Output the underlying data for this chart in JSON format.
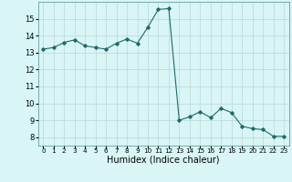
{
  "x": [
    0,
    1,
    2,
    3,
    4,
    5,
    6,
    7,
    8,
    9,
    10,
    11,
    12,
    13,
    14,
    15,
    16,
    17,
    18,
    19,
    20,
    21,
    22,
    23
  ],
  "y": [
    13.2,
    13.3,
    13.6,
    13.75,
    13.4,
    13.3,
    13.2,
    13.55,
    13.8,
    13.55,
    14.5,
    15.55,
    15.6,
    9.0,
    9.2,
    9.5,
    9.15,
    9.7,
    9.45,
    8.65,
    8.5,
    8.45,
    8.05,
    8.05
  ],
  "line_color": "#1a6b6b",
  "marker": "D",
  "marker_size": 1.8,
  "line_width": 0.8,
  "bg_color": "#d9f5f5",
  "grid_color": "#b8d8d8",
  "xlabel": "Humidex (Indice chaleur)",
  "xlim": [
    -0.5,
    23.5
  ],
  "ylim": [
    7.5,
    16.0
  ],
  "yticks": [
    8,
    9,
    10,
    11,
    12,
    13,
    14,
    15
  ],
  "xtick_positions": [
    0,
    1,
    2,
    3,
    4,
    5,
    6,
    7,
    8,
    9,
    10,
    11,
    12,
    13,
    14,
    15,
    16,
    17,
    18,
    19,
    20,
    21,
    22,
    23
  ],
  "xtick_labels": [
    "0",
    "1",
    "2",
    "3",
    "4",
    "5",
    "6",
    "7",
    "8",
    "9",
    "10",
    "11",
    "12",
    "13",
    "14",
    "15",
    "16",
    "17",
    "18",
    "19",
    "20",
    "21",
    "22",
    "23"
  ],
  "xtick_fontsize": 5.2,
  "ytick_fontsize": 6.0,
  "xlabel_fontsize": 7.0
}
